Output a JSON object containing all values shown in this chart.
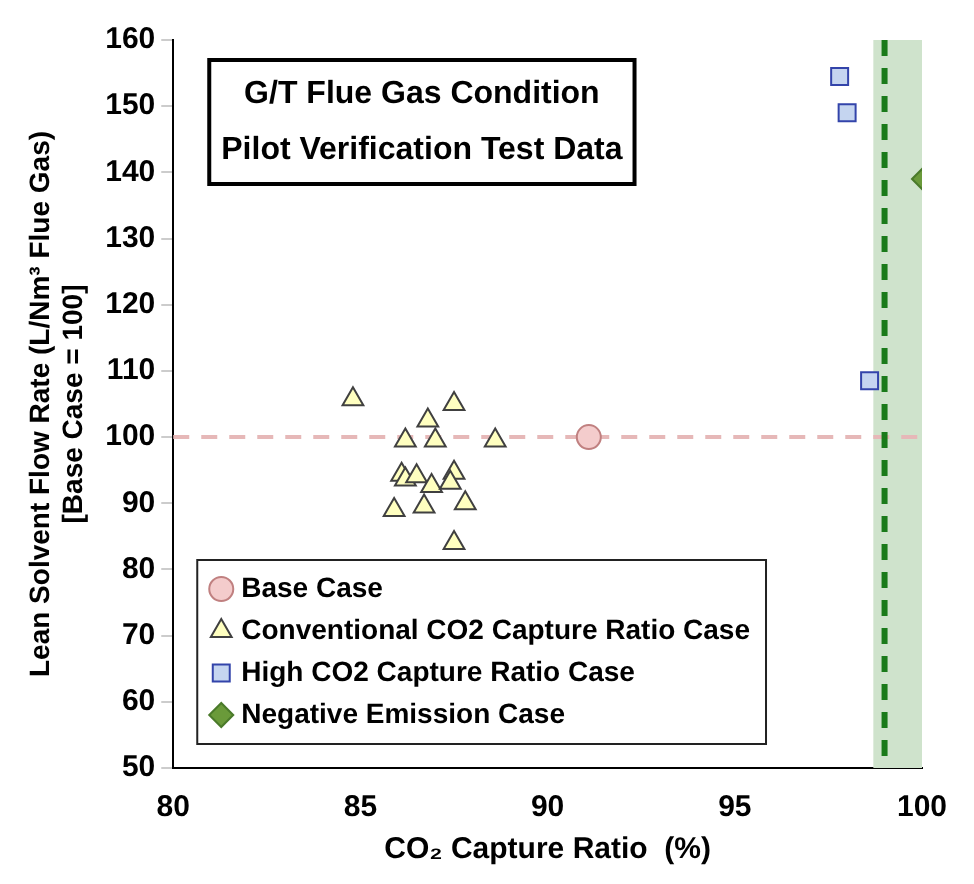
{
  "chart_data": {
    "type": "scatter",
    "title": "G/T Flue Gas Condition\nPilot Verification Test Data",
    "xlabel": "CO₂ Capture Ratio  (%)",
    "ylabel": "Lean Solvent Flow Rate (L/Nm³ Flue Gas)\n[Base Case = 100]",
    "xlim": [
      80,
      100
    ],
    "xticks": [
      80,
      85,
      90,
      95,
      100
    ],
    "ylim": [
      50,
      160
    ],
    "yticks": [
      50,
      60,
      70,
      80,
      90,
      100,
      110,
      120,
      130,
      140,
      150,
      160
    ],
    "grid": false,
    "legend": "bottom left",
    "series": [
      {
        "name": "Base Case",
        "color": "#f4cccc",
        "marker": "circle",
        "x": [
          91.1
        ],
        "values": [
          100
        ]
      },
      {
        "name": "Conventional CO2 Capture Ratio Case",
        "color": "#ffffc0",
        "marker": "triangle",
        "x": [
          84.8,
          86.2,
          86.8,
          87.5,
          87.0,
          88.6,
          86.1,
          86.2,
          86.5,
          86.9,
          87.5,
          87.4,
          85.9,
          86.7,
          87.8,
          87.5
        ],
        "values": [
          105.7,
          99.5,
          102.5,
          105,
          99.5,
          99.5,
          94.3,
          93.6,
          94.1,
          92.6,
          94.6,
          93.1,
          89,
          89.5,
          90,
          84
        ]
      },
      {
        "name": "High CO2 Capture Ratio Case",
        "color": "#c5d5f0",
        "marker": "square",
        "x": [
          97.8,
          98.0,
          98.6
        ],
        "values": [
          154.5,
          149,
          108.5
        ]
      },
      {
        "name": "Negative Emission Case",
        "color": "#6a9a3a",
        "marker": "diamond",
        "x": [
          100
        ],
        "values": [
          139
        ]
      }
    ],
    "ref_lines": [
      {
        "axis": "y",
        "value": 100,
        "color": "#e6b8b8",
        "line_style": "dashed"
      },
      {
        "axis": "x",
        "value": 99,
        "color": "#1a7a1a",
        "line_style": "dashed"
      }
    ],
    "bands": [
      {
        "axis": "x",
        "from": 98.7,
        "to": 100,
        "color": "#cfe3cc"
      }
    ]
  }
}
